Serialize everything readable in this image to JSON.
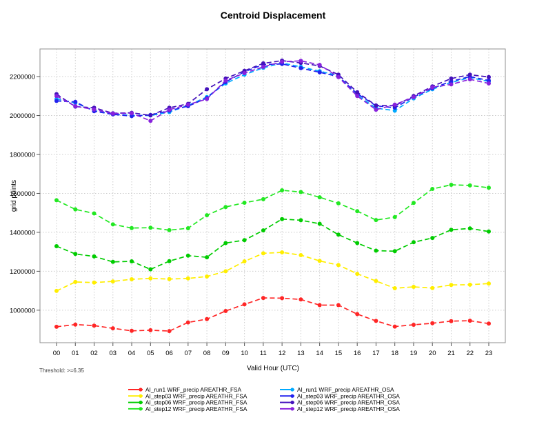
{
  "page": {
    "threshold_note": "Threshold: >=6.35"
  },
  "chart_data": {
    "type": "line",
    "title": "Centroid Displacement",
    "xlabel": "Valid Hour (UTC)",
    "ylabel": "grid points",
    "threshold_note": "Threshold: >=6.35",
    "grid": true,
    "line_style": "dashed",
    "marker": "circle",
    "legend_position": "bottom",
    "legend_columns": 2,
    "x_categories": [
      "00",
      "01",
      "02",
      "03",
      "04",
      "05",
      "06",
      "07",
      "08",
      "09",
      "10",
      "11",
      "12",
      "13",
      "14",
      "15",
      "16",
      "17",
      "18",
      "19",
      "20",
      "21",
      "22",
      "23"
    ],
    "yticks": [
      1000000,
      1200000,
      1400000,
      1600000,
      1800000,
      2000000,
      2200000
    ],
    "ylim": [
      833000,
      2342000
    ],
    "series": [
      {
        "name": "AI_run1 WRF_precip AREATHR_FSA",
        "color": "#ff2626",
        "values": [
          915000,
          926000,
          921000,
          907000,
          894000,
          897000,
          893000,
          937000,
          954000,
          996000,
          1030000,
          1063000,
          1062000,
          1055000,
          1026000,
          1026000,
          980000,
          945000,
          916000,
          925000,
          933000,
          944000,
          946000,
          931000
        ]
      },
      {
        "name": "AI_step03 WRF_precip AREATHR_FSA",
        "color": "#ffee00",
        "values": [
          1099000,
          1145000,
          1142000,
          1148000,
          1159000,
          1163000,
          1160000,
          1163000,
          1173000,
          1200000,
          1251000,
          1292000,
          1297000,
          1283000,
          1253000,
          1232000,
          1187000,
          1150000,
          1113000,
          1120000,
          1114000,
          1130000,
          1131000,
          1137000
        ]
      },
      {
        "name": "AI_step06 WRF_precip AREATHR_FSA",
        "color": "#00cc00",
        "values": [
          1329000,
          1289000,
          1276000,
          1248000,
          1251000,
          1210000,
          1252000,
          1280000,
          1272000,
          1345000,
          1360000,
          1410000,
          1468000,
          1462000,
          1444000,
          1388000,
          1345000,
          1306000,
          1303000,
          1349000,
          1371000,
          1413000,
          1420000,
          1404000
        ]
      },
      {
        "name": "AI_step12 WRF_precip AREATHR_FSA",
        "color": "#22e822",
        "values": [
          1565000,
          1518000,
          1497000,
          1441000,
          1422000,
          1424000,
          1411000,
          1421000,
          1488000,
          1530000,
          1552000,
          1570000,
          1616000,
          1607000,
          1580000,
          1549000,
          1509000,
          1463000,
          1478000,
          1551000,
          1623000,
          1644000,
          1641000,
          1629000
        ]
      },
      {
        "name": "AI_run1 WRF_precip AREATHR_OSA",
        "color": "#00aaff",
        "values": [
          2085000,
          2065000,
          2025000,
          2008000,
          2000000,
          2000000,
          2018000,
          2052000,
          2095000,
          2165000,
          2210000,
          2245000,
          2270000,
          2250000,
          2228000,
          2205000,
          2105000,
          2038000,
          2025000,
          2088000,
          2135000,
          2170000,
          2195000,
          2175000
        ]
      },
      {
        "name": "AI_step03 WRF_precip AREATHR_OSA",
        "color": "#2222ee",
        "values": [
          2075000,
          2070000,
          2022000,
          2006000,
          1997000,
          2003000,
          2025000,
          2048000,
          2090000,
          2172000,
          2225000,
          2262000,
          2265000,
          2243000,
          2222000,
          2200000,
          2112000,
          2050000,
          2040000,
          2095000,
          2140000,
          2176000,
          2200000,
          2180000
        ]
      },
      {
        "name": "AI_step06 WRF_precip AREATHR_OSA",
        "color": "#4411bb",
        "values": [
          2110000,
          2046000,
          2040000,
          2012000,
          2014000,
          2001000,
          2040000,
          2060000,
          2135000,
          2190000,
          2230000,
          2268000,
          2282000,
          2270000,
          2255000,
          2210000,
          2120000,
          2052000,
          2050000,
          2100000,
          2150000,
          2190000,
          2210000,
          2198000
        ]
      },
      {
        "name": "AI_step12 WRF_precip AREATHR_OSA",
        "color": "#8822dd",
        "values": [
          2100000,
          2048000,
          2031000,
          2010000,
          2012000,
          1973000,
          2030000,
          2056000,
          2085000,
          2180000,
          2218000,
          2250000,
          2276000,
          2281000,
          2260000,
          2198000,
          2100000,
          2030000,
          2056000,
          2094000,
          2145000,
          2160000,
          2186000,
          2165000
        ]
      }
    ]
  }
}
